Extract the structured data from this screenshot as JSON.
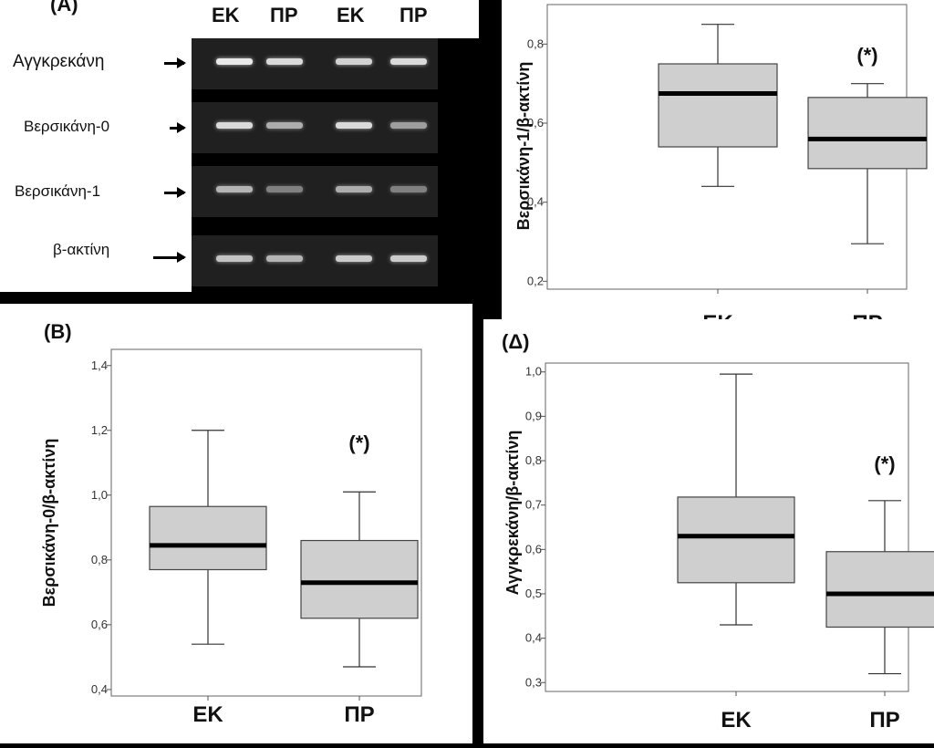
{
  "panelA": {
    "letter": "(A)",
    "lanes": [
      "ΕΚ",
      "ΠΡ",
      "ΕΚ",
      "ΠΡ"
    ],
    "rows": [
      {
        "name": "Αγγκρεκάνη",
        "bands": [
          0.95,
          0.85,
          0.8,
          0.85
        ]
      },
      {
        "name": "Βερσικάνη-0",
        "bands": [
          0.85,
          0.55,
          0.85,
          0.45
        ]
      },
      {
        "name": "Βερσικάνη-1",
        "bands": [
          0.6,
          0.25,
          0.55,
          0.25
        ]
      },
      {
        "name": "β-ακτίνη",
        "bands": [
          0.7,
          0.6,
          0.75,
          0.75
        ]
      }
    ]
  },
  "chart_data": [
    {
      "type": "boxplot",
      "panel": "",
      "ylabel": "Βερσικάνη-1/β-ακτίνη",
      "ylim": [
        0.18,
        0.9
      ],
      "yticks": [
        "0,2",
        "0,4",
        "0,6",
        "0,8"
      ],
      "ytick_values": [
        0.2,
        0.4,
        0.6,
        0.8
      ],
      "categories": [
        "ΕΚ",
        "ΠΡ"
      ],
      "boxes": [
        {
          "min": 0.44,
          "q1": 0.54,
          "median": 0.675,
          "q3": 0.75,
          "max": 0.85,
          "annotation": ""
        },
        {
          "min": 0.295,
          "q1": 0.485,
          "median": 0.56,
          "q3": 0.665,
          "max": 0.7,
          "annotation": "(*)"
        }
      ]
    },
    {
      "type": "boxplot",
      "panel": "(B)",
      "ylabel": "Βερσικάνη-0/β-ακτίνη",
      "ylim": [
        0.38,
        1.45
      ],
      "yticks": [
        "0,4",
        "0,6",
        "0,8",
        "1,0",
        "1,2",
        "1,4"
      ],
      "ytick_values": [
        0.4,
        0.6,
        0.8,
        1.0,
        1.2,
        1.4
      ],
      "categories": [
        "ΕΚ",
        "ΠΡ"
      ],
      "boxes": [
        {
          "min": 0.54,
          "q1": 0.77,
          "median": 0.845,
          "q3": 0.965,
          "max": 1.2,
          "annotation": ""
        },
        {
          "min": 0.47,
          "q1": 0.62,
          "median": 0.73,
          "q3": 0.86,
          "max": 1.01,
          "annotation": "(*)"
        }
      ]
    },
    {
      "type": "boxplot",
      "panel": "(Δ)",
      "ylabel": "Αγγκρεκάνη/β-ακτίνη",
      "ylim": [
        0.28,
        1.02
      ],
      "yticks": [
        "0,3",
        "0,4",
        "0,5",
        "0,6",
        "0,7",
        "0,8",
        "0,9",
        "1,0"
      ],
      "ytick_values": [
        0.3,
        0.4,
        0.5,
        0.6,
        0.7,
        0.8,
        0.9,
        1.0
      ],
      "categories": [
        "ΕΚ",
        "ΠΡ"
      ],
      "boxes": [
        {
          "min": 0.43,
          "q1": 0.525,
          "median": 0.63,
          "q3": 0.718,
          "max": 0.995,
          "annotation": ""
        },
        {
          "min": 0.32,
          "q1": 0.425,
          "median": 0.5,
          "q3": 0.595,
          "max": 0.71,
          "annotation": "(*)"
        }
      ]
    }
  ]
}
